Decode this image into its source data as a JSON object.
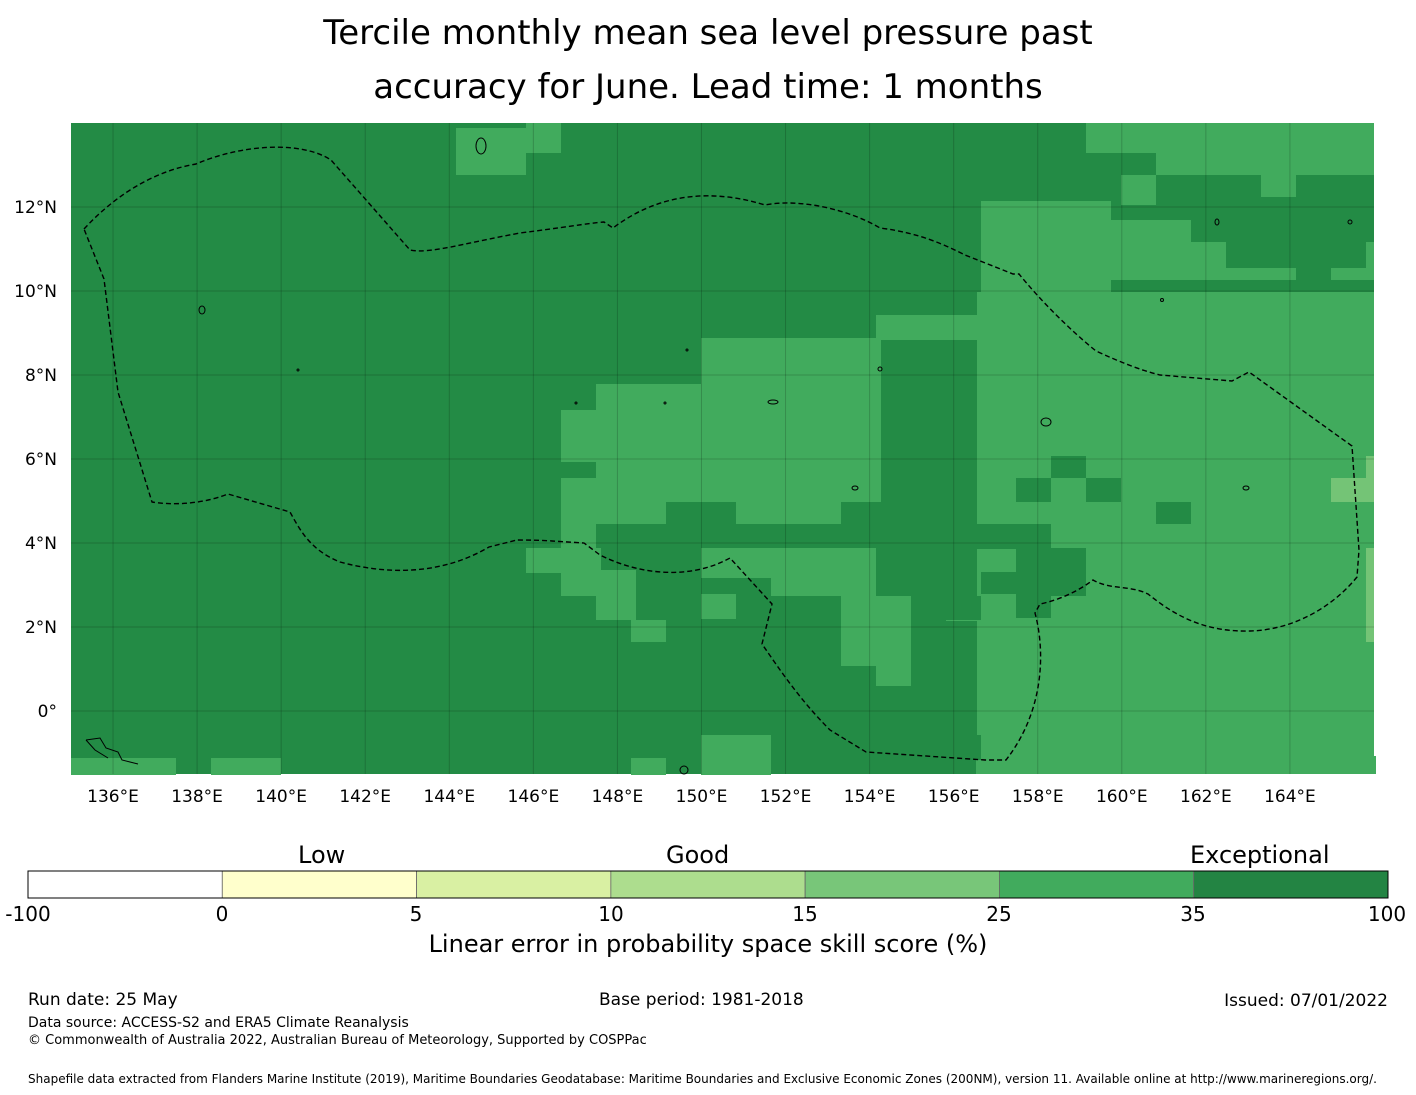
{
  "title": {
    "line1": "Tercile monthly mean sea level pressure past",
    "line2": "accuracy for June. Lead time: 1 months"
  },
  "map": {
    "lon_ticks": [
      "136°E",
      "138°E",
      "140°E",
      "142°E",
      "144°E",
      "146°E",
      "148°E",
      "150°E",
      "152°E",
      "154°E",
      "156°E",
      "158°E",
      "160°E",
      "162°E",
      "164°E"
    ],
    "lat_ticks": [
      "12°N",
      "10°N",
      "8°N",
      "6°N",
      "4°N",
      "2°N",
      "0°"
    ],
    "lon_range": [
      135,
      166
    ],
    "lat_range": [
      -1.5,
      14
    ],
    "background_color": "#238b45",
    "colors": {
      "exceptional": "#238b45",
      "very_good": "#41ab5d",
      "good": "#74c476"
    },
    "boundary_style": "dashed"
  },
  "colorbar": {
    "categories": {
      "low": "Low",
      "good": "Good",
      "exceptional": "Exceptional"
    },
    "bounds": [
      "-100",
      "0",
      "5",
      "10",
      "15",
      "25",
      "35",
      "100"
    ],
    "colors": [
      "#ffffff",
      "#ffffcc",
      "#d9f0a3",
      "#addd8e",
      "#78c679",
      "#41ab5d",
      "#238443"
    ],
    "label": "Linear error in probability space skill score (%)"
  },
  "footer": {
    "run_date": "Run date: 25 May",
    "base_period": "Base period: 1981-2018",
    "issued": "Issued: 07/01/2022",
    "data_source": "Data source: ACCESS-S2 and ERA5 Climate Reanalysis",
    "copyright": "© Commonwealth of Australia 2022, Australian Bureau of Meteorology, Supported by COSPPac",
    "shapefile": "Shapefile data extracted from Flanders Marine Institute (2019), Maritime Boundaries Geodatabase: Maritime Boundaries and Exclusive Economic Zones (200NM), version 11. Available online at http://www.marineregions.org/."
  }
}
